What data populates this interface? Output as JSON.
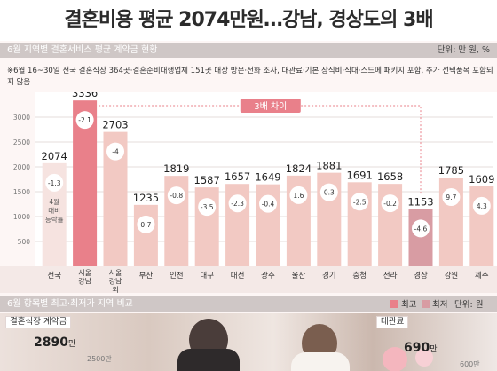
{
  "title": "결혼비용 평균 2074만원…강남, 경상도의 3배",
  "section1": {
    "label": "6월 지역별 결혼서비스 평균 계약금 현황",
    "unit": "단위: 만 원, %"
  },
  "note": "※6월 16~30일 전국 결혼식장 364곳·결혼준비대행업체 151곳 대상 방문·전화 조사, 대관료·기본 장식비·식대·스드메 패키지 포함, 추가 선택품목 포함되지 않음",
  "callout": "3배 차이",
  "avg_note": "4월 대비 등락률",
  "section2": {
    "label": "6월 항목별 최고·최저가 지역 비교",
    "legend_high": "최고",
    "legend_low": "최저",
    "unit": "단위: 원"
  },
  "bottom": {
    "left_label": "결혼식장 계약금",
    "left_value": "2890",
    "left_suffix": "만",
    "left_tick": "2500만",
    "right_label": "대관료",
    "right_value": "690",
    "right_suffix": "만",
    "right_tick": "600만"
  },
  "colors": {
    "bar": "#f2c9c3",
    "bar_high": "#e9808a",
    "bar_low": "#d89ca3",
    "circle": "#ffffff",
    "avg_box": "#f6e3e0",
    "accent": "#e9808a"
  },
  "chart_data": {
    "type": "bar",
    "title": "6월 지역별 결혼서비스 평균 계약금 현황",
    "ylim": [
      0,
      3500
    ],
    "yticks": [
      500,
      1000,
      1500,
      2000,
      2500,
      3000
    ],
    "grid": true,
    "categories": [
      "전국",
      "서울 강남",
      "서울 강남 외",
      "부산",
      "인천",
      "대구",
      "대전",
      "광주",
      "울산",
      "경기",
      "충청",
      "전라",
      "경상",
      "강원",
      "제주"
    ],
    "values": [
      2074,
      3336,
      2703,
      1235,
      1819,
      1587,
      1657,
      1649,
      1824,
      1881,
      1691,
      1658,
      1153,
      1785,
      1609
    ],
    "change": [
      "-1.3",
      "-2.1",
      "-4",
      "0.7",
      "-0.8",
      "-3.5",
      "-2.3",
      "-0.4",
      "1.6",
      "0.3",
      "-2.5",
      "-0.2",
      "-4.6",
      "9.7",
      "4.3"
    ],
    "highlight_high": 1,
    "highlight_low": 12
  }
}
